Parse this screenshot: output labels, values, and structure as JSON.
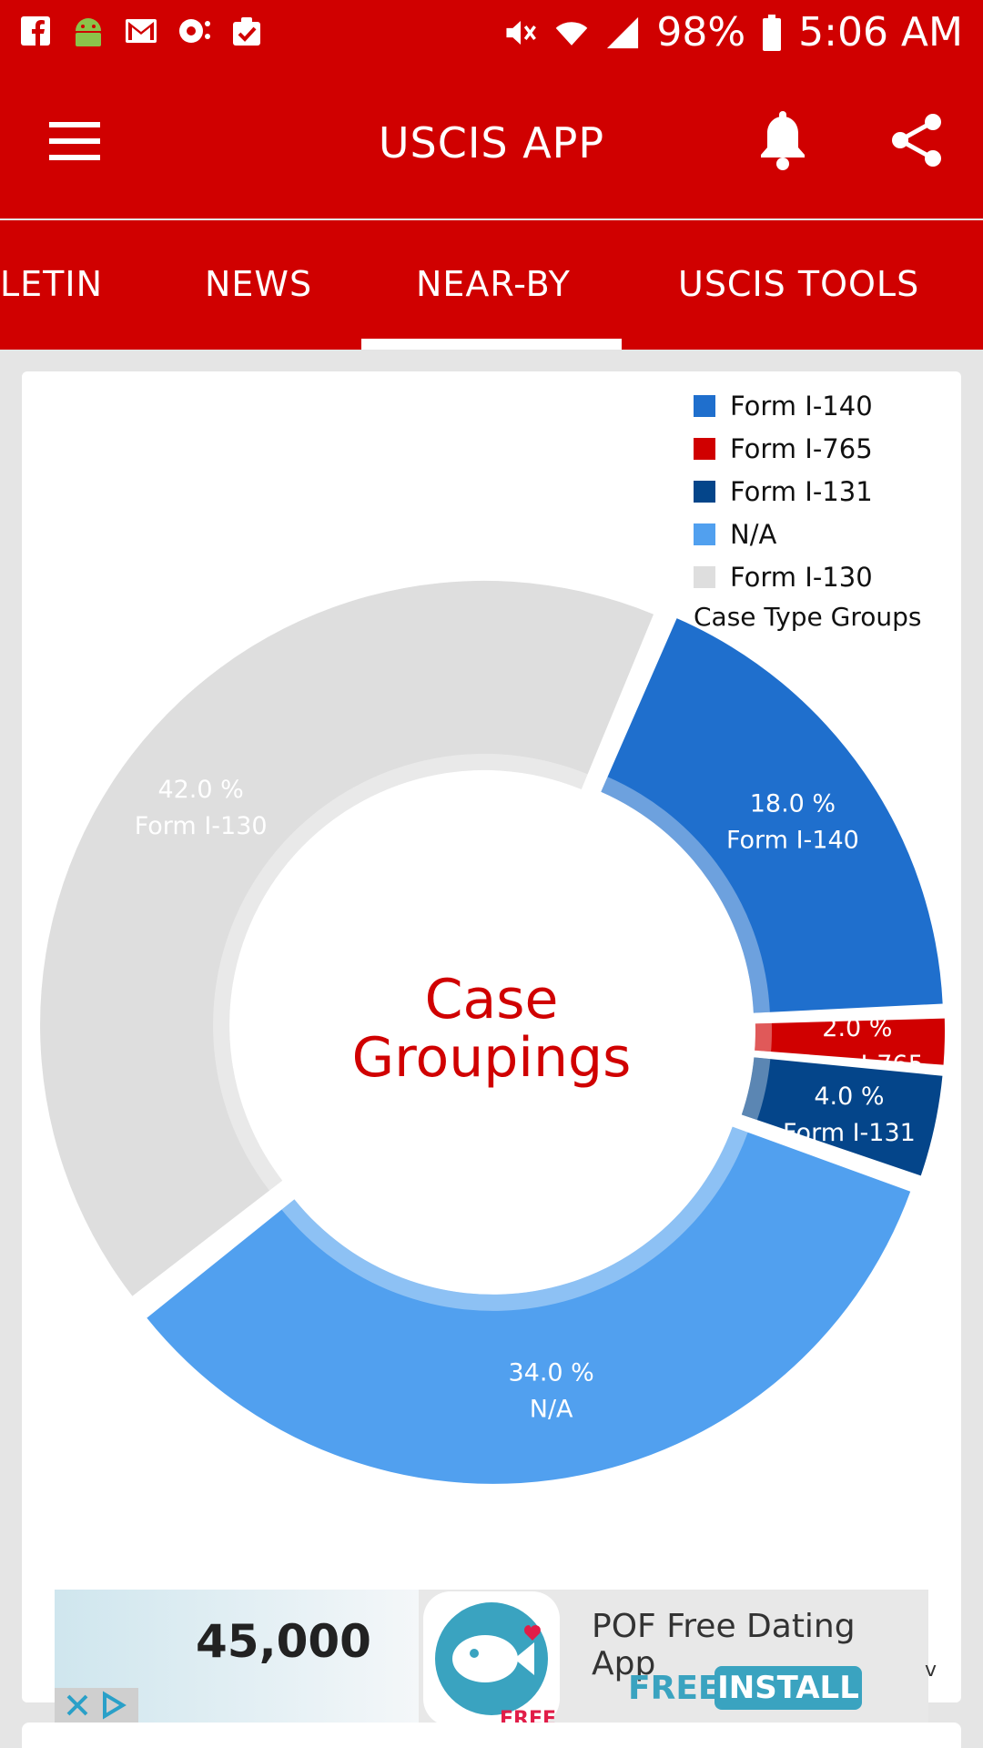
{
  "status_bar": {
    "battery": "98%",
    "time": "5:06 AM",
    "colors": {
      "bar": "#d00000"
    }
  },
  "app_bar": {
    "title": "USCIS APP"
  },
  "tabs": [
    {
      "label": "LETIN"
    },
    {
      "label": "NEWS"
    },
    {
      "label": "NEAR-BY",
      "selected": true
    },
    {
      "label": "USCIS TOOLS"
    }
  ],
  "chart_data": {
    "type": "pie",
    "title": "",
    "center_label_line1": "Case",
    "center_label_line2": "Groupings",
    "legend_title": "Case Type Groups",
    "legend_placement": "top-right",
    "slices": [
      {
        "label": "Form I-140",
        "value": 18.0,
        "value_label": "18.0 %",
        "color": "#1f6fcd"
      },
      {
        "label": "Form I-765",
        "value": 2.0,
        "value_label": "2.0 %",
        "color": "#d00000"
      },
      {
        "label": "Form I-131",
        "value": 4.0,
        "value_label": "4.0 %",
        "color": "#04458a"
      },
      {
        "label": "N/A",
        "value": 34.0,
        "value_label": "34.0 %",
        "color": "#51a0ef"
      },
      {
        "label": "Form I-130",
        "value": 42.0,
        "value_label": "42.0 %",
        "color": "#dedede"
      }
    ]
  },
  "ad": {
    "number": "45,000",
    "title": "POF Free Dating App",
    "free_label": "FREE",
    "install_label": "INSTALL",
    "logo_text": "FREE",
    "edge_glyph": "v"
  }
}
